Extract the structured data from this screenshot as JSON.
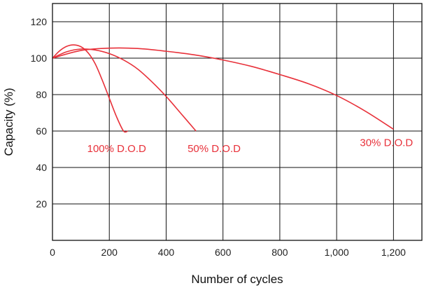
{
  "chart_data": {
    "type": "line",
    "title": "",
    "xlabel": "Number of cycles",
    "ylabel": "Capacity (%)",
    "xlim": [
      0,
      1300
    ],
    "ylim": [
      0,
      130
    ],
    "x_ticks": [
      0,
      200,
      400,
      600,
      800,
      1000,
      1200
    ],
    "x_tick_labels": [
      "0",
      "200",
      "400",
      "600",
      "800",
      "1,000",
      "1,200"
    ],
    "y_ticks": [
      20,
      40,
      60,
      80,
      100,
      120
    ],
    "y_tick_labels": [
      "20",
      "40",
      "60",
      "80",
      "100",
      "120"
    ],
    "grid": true,
    "series_color": "#e8313a",
    "series": [
      {
        "name": "100% D.O.D",
        "x": [
          0,
          25,
          50,
          75,
          100,
          125,
          150,
          175,
          200,
          225,
          250,
          265
        ],
        "y": [
          100,
          104,
          106.5,
          107.3,
          106.3,
          103,
          97,
          88,
          78,
          68,
          60,
          60
        ]
      },
      {
        "name": "50% D.O.D",
        "x": [
          0,
          50,
          100,
          150,
          200,
          250,
          300,
          350,
          400,
          450,
          505
        ],
        "y": [
          100,
          103.5,
          105,
          104.5,
          102.5,
          99,
          94,
          87,
          79,
          70,
          60
        ]
      },
      {
        "name": "30% D.O.D",
        "x": [
          0,
          100,
          200,
          300,
          400,
          500,
          600,
          700,
          800,
          900,
          1000,
          1100,
          1200
        ],
        "y": [
          100,
          104.2,
          105.5,
          105.3,
          103.8,
          101.8,
          99,
          95.5,
          91,
          86,
          79.5,
          71,
          61
        ]
      }
    ]
  }
}
